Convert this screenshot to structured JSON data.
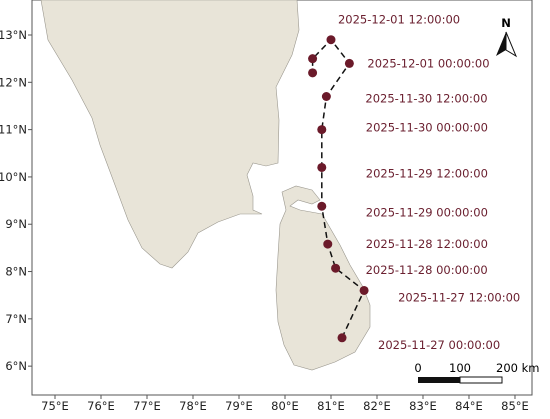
{
  "map": {
    "xlim": [
      74.5,
      85.37
    ],
    "ylim": [
      5.39,
      13.74
    ],
    "xticks": [
      {
        "value": 75,
        "label": "75°E"
      },
      {
        "value": 76,
        "label": "76°E"
      },
      {
        "value": 77,
        "label": "77°E"
      },
      {
        "value": 78,
        "label": "78°E"
      },
      {
        "value": 79,
        "label": "79°E"
      },
      {
        "value": 80,
        "label": "80°E"
      },
      {
        "value": 81,
        "label": "81°E"
      },
      {
        "value": 82,
        "label": "82°E"
      },
      {
        "value": 83,
        "label": "83°E"
      },
      {
        "value": 84,
        "label": "84°E"
      },
      {
        "value": 85,
        "label": "85°E"
      }
    ],
    "yticks": [
      {
        "value": 6,
        "label": "6°N"
      },
      {
        "value": 7,
        "label": "7°N"
      },
      {
        "value": 8,
        "label": "8°N"
      },
      {
        "value": 9,
        "label": "9°N"
      },
      {
        "value": 10,
        "label": "10°N"
      },
      {
        "value": 11,
        "label": "11°N"
      },
      {
        "value": 12,
        "label": "12°N"
      },
      {
        "value": 13,
        "label": "13°N"
      }
    ],
    "track": {
      "lon": [
        81.24,
        81.72,
        81.1,
        80.93,
        80.8,
        80.8,
        80.8,
        80.9,
        81.4,
        81.0,
        80.6,
        80.6
      ],
      "lat": [
        6.6,
        7.6,
        8.07,
        8.58,
        9.38,
        10.2,
        11.0,
        11.7,
        12.4,
        12.9,
        12.5,
        12.2
      ],
      "labels": [
        "2025-11-27 00:00:00",
        "2025-11-27 12:00:00",
        "2025-11-28 00:00:00",
        "2025-11-28 12:00:00",
        "2025-11-29 00:00:00",
        "2025-11-29 12:00:00",
        "2025-11-30 00:00:00",
        "2025-11-30 12:00:00",
        "2025-12-01 00:00:00",
        "2025-12-01 12:00:00",
        null,
        null
      ],
      "color": "#6b1a2a"
    },
    "north_label": "N",
    "scale_bar": {
      "labels": [
        "0",
        "100",
        "200 km"
      ]
    }
  }
}
